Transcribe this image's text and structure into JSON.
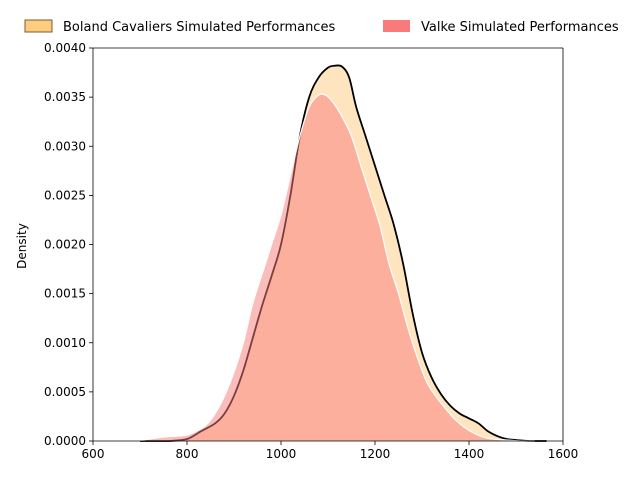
{
  "chart_data": {
    "type": "area",
    "title": "",
    "xlabel": "",
    "ylabel": "Density",
    "xlim": [
      600,
      1600
    ],
    "ylim": [
      0,
      0.004
    ],
    "x_ticks": [
      600,
      800,
      1000,
      1200,
      1400,
      1600
    ],
    "x_tick_labels": [
      "600",
      "800",
      "1000",
      "1200",
      "1400",
      "1600"
    ],
    "y_ticks": [
      0,
      0.0005,
      0.001,
      0.0015,
      0.002,
      0.0025,
      0.003,
      0.0035,
      0.004
    ],
    "y_tick_labels": [
      "0.0000",
      "0.0005",
      "0.0010",
      "0.0015",
      "0.0020",
      "0.0025",
      "0.0030",
      "0.0035",
      "0.0040"
    ],
    "grid": false,
    "legend_position": "top",
    "series": [
      {
        "name": "Boland Cavaliers Simulated Performances",
        "fill_color": "#fdbf5f",
        "fill_opacity": 0.4,
        "edge_color": "#000000",
        "x": [
          700,
          760,
          800,
          830,
          860,
          880,
          900,
          920,
          940,
          960,
          980,
          1000,
          1020,
          1040,
          1060,
          1080,
          1100,
          1115,
          1130,
          1145,
          1160,
          1180,
          1200,
          1220,
          1240,
          1260,
          1280,
          1300,
          1320,
          1340,
          1360,
          1380,
          1400,
          1420,
          1440,
          1460,
          1480,
          1500,
          1530,
          1565
        ],
        "y": [
          0.0,
          0.0,
          2e-05,
          0.0001,
          0.00018,
          0.00028,
          0.00046,
          0.00072,
          0.00105,
          0.00138,
          0.00168,
          0.002,
          0.0025,
          0.0031,
          0.0035,
          0.0037,
          0.0038,
          0.00382,
          0.00381,
          0.0037,
          0.0034,
          0.0031,
          0.0028,
          0.0025,
          0.0022,
          0.0018,
          0.0013,
          0.0009,
          0.00065,
          0.00048,
          0.00036,
          0.00028,
          0.00023,
          0.00018,
          0.0001,
          5e-05,
          2e-05,
          1e-05,
          0.0,
          0.0
        ]
      },
      {
        "name": "Valke Simulated Performances",
        "fill_color": "#f87a7a",
        "fill_opacity": 0.5,
        "edge_color": "#ffffff",
        "x": [
          690,
          720,
          750,
          780,
          800,
          820,
          840,
          860,
          880,
          900,
          920,
          940,
          960,
          980,
          1000,
          1020,
          1040,
          1060,
          1080,
          1095,
          1110,
          1130,
          1150,
          1170,
          1190,
          1210,
          1230,
          1250,
          1270,
          1290,
          1310,
          1330,
          1350,
          1370,
          1390,
          1410,
          1430,
          1450,
          1480,
          1510,
          1540
        ],
        "y": [
          0.0,
          2e-05,
          4e-05,
          5e-05,
          6e-05,
          0.0001,
          0.00016,
          0.00028,
          0.00046,
          0.0007,
          0.001,
          0.0014,
          0.0017,
          0.002,
          0.0023,
          0.0027,
          0.0031,
          0.0034,
          0.00352,
          0.00352,
          0.00345,
          0.0033,
          0.0031,
          0.0028,
          0.0025,
          0.0022,
          0.0018,
          0.0015,
          0.00115,
          0.00085,
          0.0006,
          0.00045,
          0.00033,
          0.00022,
          0.00014,
          8e-05,
          4e-05,
          2e-05,
          1e-05,
          0.0,
          0.0
        ]
      }
    ]
  }
}
